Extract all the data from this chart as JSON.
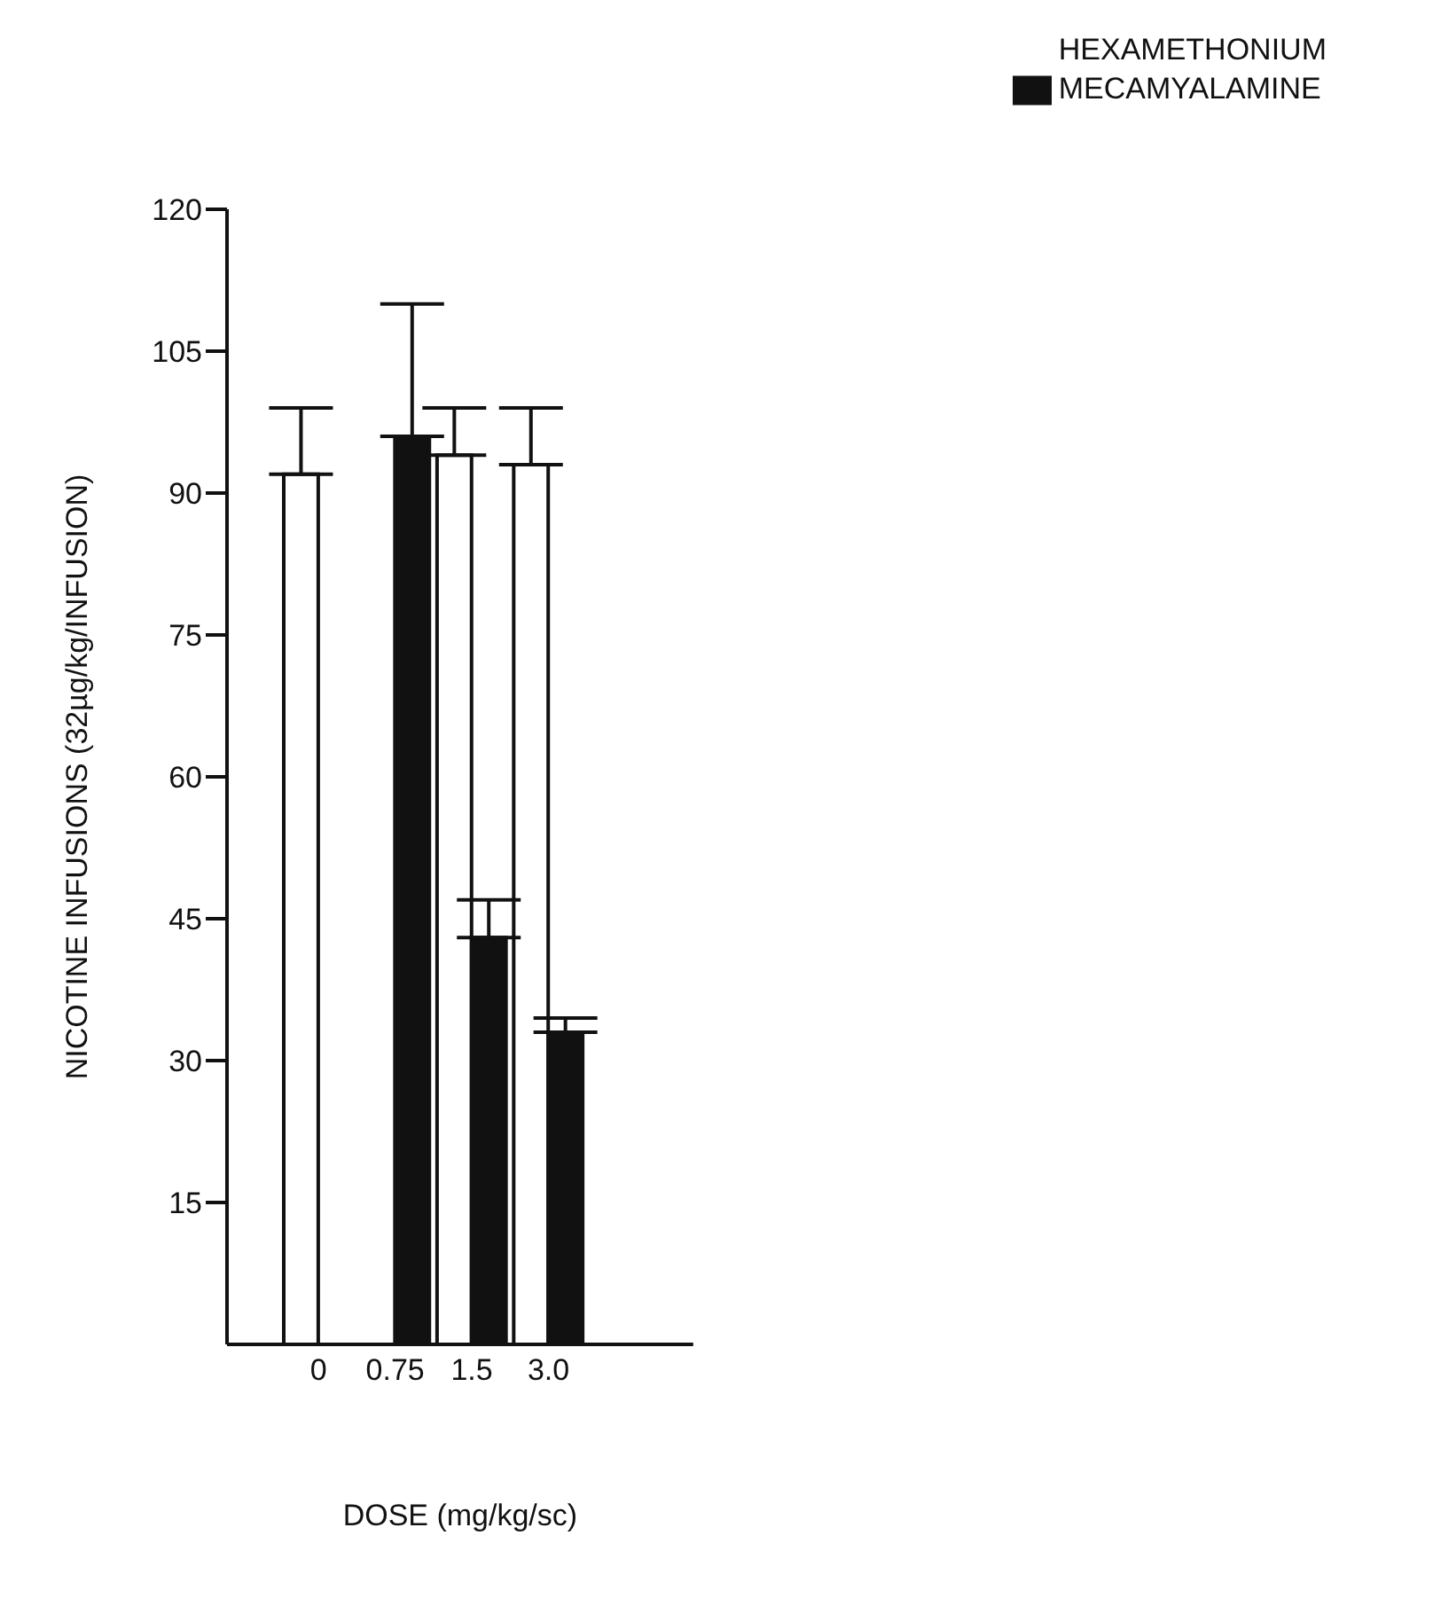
{
  "chart_data": {
    "type": "bar",
    "xlabel": "DOSE (mg/kg/sc)",
    "ylabel": "NICOTINE INFUSIONS (32µg/kg/INFUSION)",
    "categories": [
      "0",
      "0.75",
      "1.5",
      "3.0"
    ],
    "series": [
      {
        "name": "HEXAMETHONIUM",
        "color": "#ffffff",
        "values": [
          92,
          null,
          94,
          93
        ],
        "errors": [
          [
            92,
            99
          ],
          null,
          [
            94,
            99
          ],
          [
            93,
            99
          ]
        ]
      },
      {
        "name": "MECAMYALAMINE",
        "color": "#111111",
        "values": [
          null,
          96,
          43,
          33
        ],
        "errors": [
          null,
          [
            96,
            110
          ],
          [
            43,
            47
          ],
          [
            33,
            34.5
          ]
        ]
      }
    ],
    "ylim": [
      0,
      120
    ],
    "yticks": [
      15,
      30,
      45,
      60,
      75,
      90,
      105,
      120
    ],
    "grid": false,
    "legend": "top right"
  }
}
